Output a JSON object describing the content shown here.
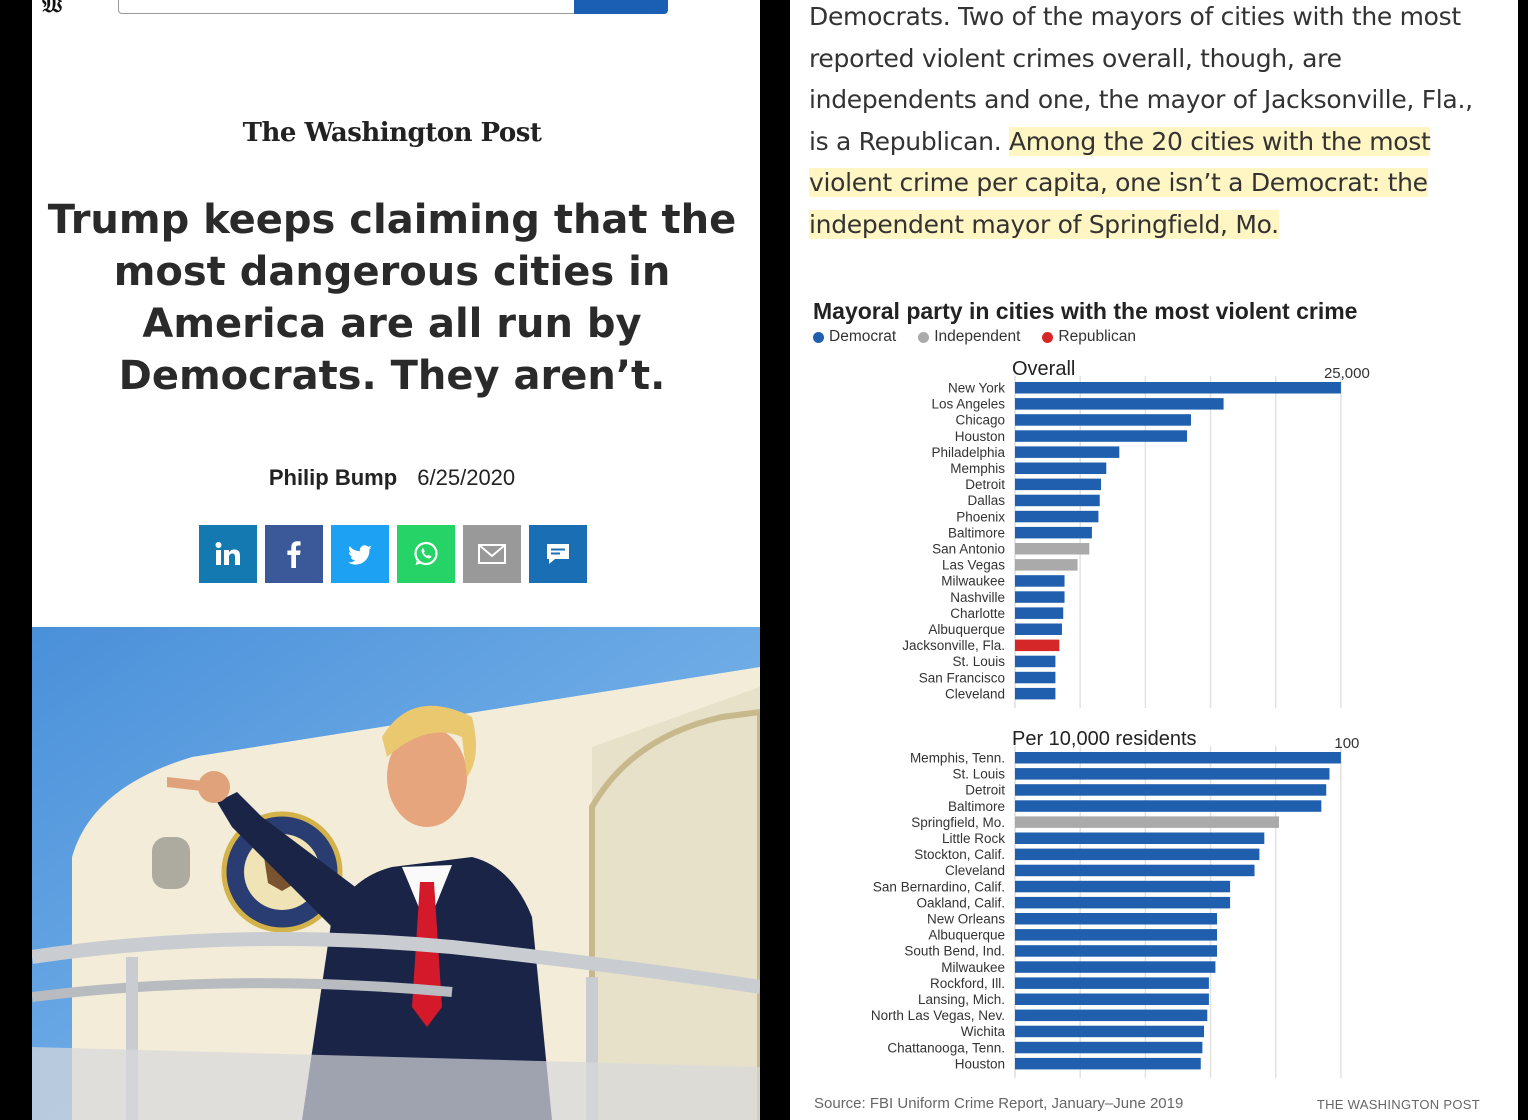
{
  "left": {
    "masthead": "The Washington Post",
    "headline": "Trump keeps claiming that the most dangerous cities in America are all run by Democrats. They aren’t.",
    "author": "Philip Bump",
    "date": "6/25/2020",
    "share_icons": [
      "linkedin-icon",
      "facebook-icon",
      "twitter-icon",
      "whatsapp-icon",
      "email-icon",
      "comment-icon"
    ]
  },
  "right": {
    "paragraph_plain": "Democrats. Two of the mayors of cities with the most reported violent crimes overall, though, are independents and one, the mayor of Jacksonville, Fla., is a Republican. ",
    "paragraph_highlight": "Among the 20 cities with the most violent crime per capita, one isn’t a Democrat: the independent mayor of Springfield, Mo.",
    "source": "Source: FBI Uniform Crime Report, January–June 2019",
    "credit": "THE WASHINGTON POST"
  },
  "colors": {
    "democrat": "#1f5fad",
    "independent": "#aaaaaa",
    "republican": "#d62728",
    "highlight": "#fff6c4"
  },
  "chart_data": {
    "type": "bar",
    "title": "Mayoral party in cities with the most violent crime",
    "legend": [
      {
        "label": "Democrat",
        "key": "democrat"
      },
      {
        "label": "Independent",
        "key": "independent"
      },
      {
        "label": "Republican",
        "key": "republican"
      }
    ],
    "legend_placement": "top-left",
    "orientation": "horizontal",
    "panels": [
      {
        "title": "Overall",
        "tick_label": "25,000",
        "tick_value": 25000,
        "xlim": [
          0,
          28000
        ],
        "categories": [
          "New York",
          "Los Angeles",
          "Chicago",
          "Houston",
          "Philadelphia",
          "Memphis",
          "Detroit",
          "Dallas",
          "Phoenix",
          "Baltimore",
          "San Antonio",
          "Las Vegas",
          "Milwaukee",
          "Nashville",
          "Charlotte",
          "Albuquerque",
          "Jacksonville, Fla.",
          "St. Louis",
          "San Francisco",
          "Cleveland"
        ],
        "values": [
          25000,
          16000,
          13500,
          13200,
          8000,
          7000,
          6600,
          6500,
          6400,
          5900,
          5700,
          4800,
          3800,
          3800,
          3700,
          3600,
          3400,
          3100,
          3100,
          3100
        ],
        "party": [
          "democrat",
          "democrat",
          "democrat",
          "democrat",
          "democrat",
          "democrat",
          "democrat",
          "democrat",
          "democrat",
          "democrat",
          "independent",
          "independent",
          "democrat",
          "democrat",
          "democrat",
          "democrat",
          "republican",
          "democrat",
          "democrat",
          "democrat"
        ]
      },
      {
        "title": "Per 10,000 residents",
        "tick_label": "100",
        "tick_value": 100,
        "xlim": [
          0,
          112
        ],
        "categories": [
          "Memphis, Tenn.",
          "St. Louis",
          "Detroit",
          "Baltimore",
          "Springfield, Mo.",
          "Little Rock",
          "Stockton, Calif.",
          "Cleveland",
          "San Bernardino, Calif.",
          "Oakland, Calif.",
          "New Orleans",
          "Albuquerque",
          "South Bend, Ind.",
          "Milwaukee",
          "Rockford, Ill.",
          "Lansing, Mich.",
          "North Las Vegas, Nev.",
          "Wichita",
          "Chattanooga, Tenn.",
          "Houston"
        ],
        "values": [
          100,
          96.5,
          95.5,
          94,
          81,
          76.5,
          75,
          73.5,
          66,
          66,
          62,
          62,
          62,
          61.5,
          59.5,
          59.5,
          59,
          58,
          57.5,
          57
        ],
        "party": [
          "democrat",
          "democrat",
          "democrat",
          "democrat",
          "independent",
          "democrat",
          "democrat",
          "democrat",
          "democrat",
          "democrat",
          "democrat",
          "democrat",
          "democrat",
          "democrat",
          "democrat",
          "democrat",
          "democrat",
          "democrat",
          "democrat",
          "democrat"
        ]
      }
    ],
    "grid": true
  }
}
